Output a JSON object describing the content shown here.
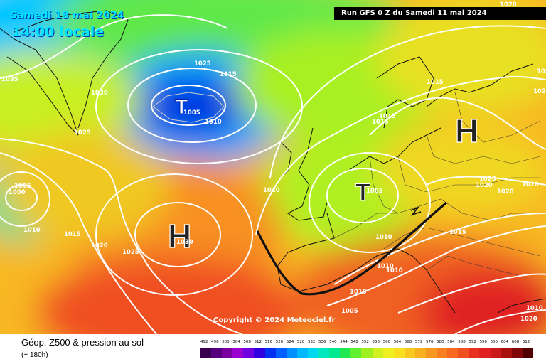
{
  "header": {
    "date": "Samedi 18 mai 2024",
    "time": "14:00 locale",
    "run": "Run GFS 0 Z du Samedi 11 mai 2024"
  },
  "copyright": "Copyright © 2024 Meteociel.fr",
  "legend": {
    "title": "Géop. Z500 & pression au sol",
    "subtitle": "(+ 180h)",
    "scale_values": [
      "492",
      "496",
      "500",
      "504",
      "508",
      "512",
      "516",
      "520",
      "524",
      "528",
      "532",
      "536",
      "540",
      "544",
      "548",
      "552",
      "556",
      "560",
      "564",
      "568",
      "572",
      "576",
      "580",
      "584",
      "588",
      "592",
      "596",
      "600",
      "604",
      "608",
      "612"
    ],
    "scale_colors": [
      "#3a0050",
      "#560080",
      "#7a00a0",
      "#9a00d0",
      "#7000e0",
      "#3000e0",
      "#0030f0",
      "#0060ff",
      "#0090ff",
      "#00b8ff",
      "#00d8f0",
      "#00e8c0",
      "#00e890",
      "#20e850",
      "#60f030",
      "#a0f020",
      "#d0f020",
      "#f0f020",
      "#f8e020",
      "#f8c820",
      "#f8b020",
      "#f89820",
      "#f88020",
      "#f86820",
      "#f05020",
      "#e83020",
      "#e02020",
      "#c81818",
      "#a81010",
      "#800808",
      "#500000"
    ]
  },
  "pressure_centers": [
    {
      "type": "L",
      "symbol": "T",
      "value": "1005",
      "region": "Iceland"
    },
    {
      "type": "L",
      "symbol": "T",
      "value": "1005",
      "region": "Benelux"
    },
    {
      "type": "H",
      "symbol": "H",
      "value": "1030",
      "region": "Azores"
    },
    {
      "type": "H",
      "symbol": "H",
      "value": "",
      "region": "Russia"
    },
    {
      "type": "L",
      "symbol": "",
      "value": "1000",
      "region": "Labrador"
    }
  ],
  "isobar_labels": [
    "1035",
    "1030",
    "1025",
    "1025",
    "1015",
    "1005",
    "1010",
    "1020",
    "1015",
    "1015",
    "1020",
    "1010",
    "1015",
    "1020",
    "1025",
    "1030",
    "1005",
    "1010",
    "1020",
    "1020",
    "1020",
    "1020",
    "1015",
    "1010",
    "1010",
    "1010",
    "1010",
    "1005",
    "1020",
    "1015",
    "1020",
    "1005",
    "1010"
  ],
  "colors": {
    "isobar": "#ffffff",
    "front": "#111111",
    "coast": "#111111",
    "header_text": "#00e5ff"
  }
}
